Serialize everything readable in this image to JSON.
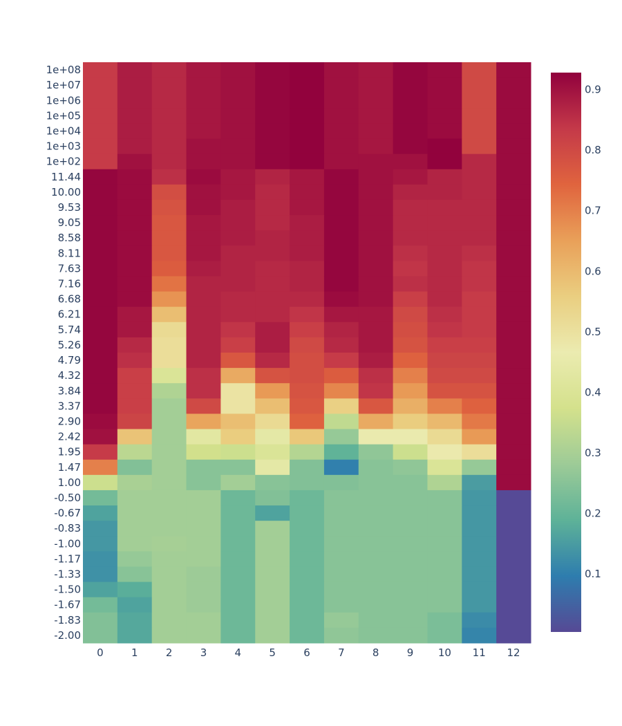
{
  "chart_data": {
    "type": "heatmap",
    "title": "",
    "xlabel": "",
    "ylabel": "",
    "x": [
      "0",
      "1",
      "2",
      "3",
      "4",
      "5",
      "6",
      "7",
      "8",
      "9",
      "10",
      "11",
      "12"
    ],
    "y": [
      "1e+08",
      "1e+07",
      "1e+06",
      "1e+05",
      "1e+04",
      "1e+03",
      "1e+02",
      "11.44",
      "10.00",
      "9.53",
      "9.05",
      "8.58",
      "8.11",
      "7.63",
      "7.16",
      "6.68",
      "6.21",
      "5.74",
      "5.26",
      "4.79",
      "4.32",
      "3.84",
      "3.37",
      "2.90",
      "2.42",
      "1.95",
      "1.47",
      "1.00",
      "-0.50",
      "-0.67",
      "-0.83",
      "-1.00",
      "-1.17",
      "-1.33",
      "-1.50",
      "-1.67",
      "-1.83",
      "-2.00"
    ],
    "z": [
      [
        0.83,
        0.88,
        0.86,
        0.89,
        0.9,
        0.92,
        0.925,
        0.9,
        0.89,
        0.92,
        0.91,
        0.8,
        0.91
      ],
      [
        0.83,
        0.88,
        0.86,
        0.89,
        0.9,
        0.92,
        0.925,
        0.9,
        0.89,
        0.92,
        0.91,
        0.8,
        0.91
      ],
      [
        0.83,
        0.88,
        0.86,
        0.89,
        0.9,
        0.92,
        0.925,
        0.9,
        0.89,
        0.92,
        0.91,
        0.8,
        0.91
      ],
      [
        0.83,
        0.88,
        0.86,
        0.89,
        0.9,
        0.92,
        0.925,
        0.9,
        0.89,
        0.92,
        0.91,
        0.8,
        0.91
      ],
      [
        0.83,
        0.88,
        0.86,
        0.89,
        0.9,
        0.92,
        0.925,
        0.9,
        0.89,
        0.92,
        0.91,
        0.8,
        0.91
      ],
      [
        0.83,
        0.88,
        0.86,
        0.9,
        0.9,
        0.92,
        0.925,
        0.9,
        0.89,
        0.92,
        0.925,
        0.8,
        0.91
      ],
      [
        0.83,
        0.9,
        0.86,
        0.9,
        0.9,
        0.92,
        0.925,
        0.9,
        0.9,
        0.9,
        0.925,
        0.86,
        0.91
      ],
      [
        0.92,
        0.91,
        0.85,
        0.91,
        0.89,
        0.87,
        0.89,
        0.92,
        0.9,
        0.89,
        0.87,
        0.86,
        0.91
      ],
      [
        0.92,
        0.91,
        0.79,
        0.9,
        0.89,
        0.86,
        0.89,
        0.92,
        0.9,
        0.87,
        0.87,
        0.86,
        0.91
      ],
      [
        0.92,
        0.91,
        0.78,
        0.9,
        0.88,
        0.86,
        0.89,
        0.92,
        0.9,
        0.86,
        0.86,
        0.86,
        0.91
      ],
      [
        0.92,
        0.91,
        0.77,
        0.89,
        0.88,
        0.86,
        0.88,
        0.92,
        0.9,
        0.86,
        0.86,
        0.86,
        0.91
      ],
      [
        0.92,
        0.91,
        0.77,
        0.89,
        0.88,
        0.87,
        0.88,
        0.92,
        0.9,
        0.86,
        0.86,
        0.86,
        0.91
      ],
      [
        0.92,
        0.91,
        0.77,
        0.89,
        0.87,
        0.87,
        0.88,
        0.92,
        0.9,
        0.85,
        0.86,
        0.85,
        0.91
      ],
      [
        0.92,
        0.91,
        0.76,
        0.88,
        0.87,
        0.86,
        0.87,
        0.92,
        0.9,
        0.84,
        0.86,
        0.84,
        0.91
      ],
      [
        0.92,
        0.91,
        0.72,
        0.87,
        0.87,
        0.86,
        0.87,
        0.92,
        0.9,
        0.85,
        0.86,
        0.84,
        0.91
      ],
      [
        0.92,
        0.91,
        0.67,
        0.87,
        0.86,
        0.86,
        0.86,
        0.91,
        0.9,
        0.82,
        0.86,
        0.83,
        0.91
      ],
      [
        0.92,
        0.89,
        0.59,
        0.87,
        0.86,
        0.86,
        0.84,
        0.89,
        0.89,
        0.8,
        0.85,
        0.83,
        0.91
      ],
      [
        0.92,
        0.89,
        0.52,
        0.87,
        0.84,
        0.88,
        0.82,
        0.87,
        0.89,
        0.79,
        0.84,
        0.83,
        0.91
      ],
      [
        0.92,
        0.86,
        0.51,
        0.87,
        0.82,
        0.88,
        0.8,
        0.86,
        0.89,
        0.78,
        0.82,
        0.82,
        0.91
      ],
      [
        0.92,
        0.85,
        0.51,
        0.87,
        0.77,
        0.86,
        0.79,
        0.83,
        0.88,
        0.75,
        0.81,
        0.81,
        0.91
      ],
      [
        0.92,
        0.82,
        0.4,
        0.85,
        0.63,
        0.78,
        0.79,
        0.76,
        0.85,
        0.7,
        0.8,
        0.8,
        0.91
      ],
      [
        0.92,
        0.82,
        0.31,
        0.85,
        0.49,
        0.66,
        0.78,
        0.69,
        0.84,
        0.66,
        0.78,
        0.78,
        0.91
      ],
      [
        0.92,
        0.82,
        0.29,
        0.8,
        0.49,
        0.59,
        0.77,
        0.55,
        0.77,
        0.62,
        0.7,
        0.75,
        0.91
      ],
      [
        0.91,
        0.81,
        0.29,
        0.64,
        0.59,
        0.52,
        0.75,
        0.34,
        0.63,
        0.56,
        0.6,
        0.71,
        0.91
      ],
      [
        0.9,
        0.58,
        0.29,
        0.43,
        0.56,
        0.44,
        0.57,
        0.27,
        0.46,
        0.46,
        0.52,
        0.66,
        0.91
      ],
      [
        0.83,
        0.33,
        0.29,
        0.37,
        0.36,
        0.4,
        0.32,
        0.19,
        0.26,
        0.36,
        0.47,
        0.51,
        0.91
      ],
      [
        0.7,
        0.24,
        0.29,
        0.25,
        0.25,
        0.44,
        0.24,
        0.1,
        0.25,
        0.26,
        0.4,
        0.27,
        0.91
      ],
      [
        0.36,
        0.3,
        0.29,
        0.25,
        0.29,
        0.25,
        0.24,
        0.24,
        0.25,
        0.25,
        0.31,
        0.15,
        0.91
      ],
      [
        0.22,
        0.29,
        0.29,
        0.29,
        0.21,
        0.24,
        0.21,
        0.25,
        0.25,
        0.25,
        0.25,
        0.14,
        0.005
      ],
      [
        0.16,
        0.29,
        0.29,
        0.29,
        0.21,
        0.16,
        0.21,
        0.25,
        0.25,
        0.25,
        0.25,
        0.14,
        0.005
      ],
      [
        0.14,
        0.29,
        0.29,
        0.29,
        0.21,
        0.29,
        0.21,
        0.25,
        0.25,
        0.25,
        0.25,
        0.14,
        0.005
      ],
      [
        0.14,
        0.29,
        0.295,
        0.29,
        0.21,
        0.29,
        0.21,
        0.25,
        0.25,
        0.25,
        0.25,
        0.14,
        0.005
      ],
      [
        0.13,
        0.27,
        0.29,
        0.29,
        0.21,
        0.29,
        0.21,
        0.25,
        0.25,
        0.25,
        0.25,
        0.14,
        0.005
      ],
      [
        0.13,
        0.25,
        0.29,
        0.28,
        0.21,
        0.29,
        0.21,
        0.25,
        0.25,
        0.25,
        0.25,
        0.14,
        0.005
      ],
      [
        0.16,
        0.18,
        0.29,
        0.28,
        0.21,
        0.29,
        0.21,
        0.25,
        0.25,
        0.25,
        0.25,
        0.14,
        0.005
      ],
      [
        0.22,
        0.16,
        0.29,
        0.28,
        0.21,
        0.29,
        0.21,
        0.25,
        0.25,
        0.25,
        0.25,
        0.14,
        0.005
      ],
      [
        0.24,
        0.17,
        0.29,
        0.29,
        0.21,
        0.29,
        0.21,
        0.27,
        0.25,
        0.25,
        0.23,
        0.12,
        0.005
      ],
      [
        0.24,
        0.17,
        0.29,
        0.29,
        0.21,
        0.29,
        0.21,
        0.26,
        0.25,
        0.25,
        0.23,
        0.11,
        0.005
      ]
    ],
    "zrange": [
      0.003,
      0.927
    ],
    "colorscale": "Spectral (reversed: low purple, high dark red)",
    "colorscale_colors": [
      "#5e4fa2",
      "#3288bd",
      "#66c2a5",
      "#abdda4",
      "#e6f598",
      "#ffffbf",
      "#fee08b",
      "#fdae61",
      "#f46d43",
      "#d53e4f",
      "#9e0142"
    ],
    "colorbar": {
      "ticks": [
        0.1,
        0.2,
        0.3,
        0.4,
        0.5,
        0.6,
        0.7,
        0.8,
        0.9
      ],
      "tick_labels": [
        "0.1",
        "0.2",
        "0.3",
        "0.4",
        "0.5",
        "0.6",
        "0.7",
        "0.8",
        "0.9"
      ],
      "placement": "right"
    },
    "grid": false
  }
}
